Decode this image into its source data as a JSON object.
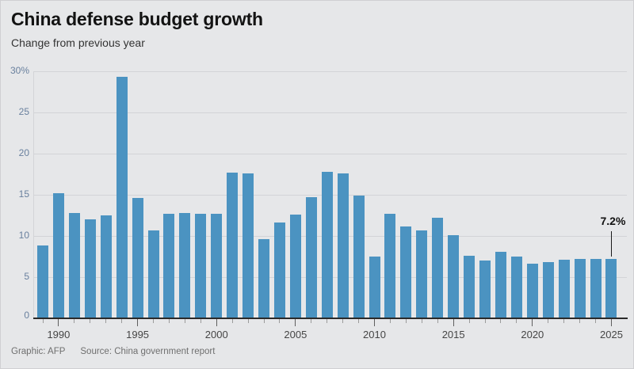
{
  "header": {
    "title": "China defense budget growth",
    "subtitle": "Change from previous year"
  },
  "footer": {
    "credit": "Graphic: AFP",
    "source": "Source: China government report"
  },
  "colors": {
    "bar": "#4b93c1",
    "background": "#e6e7e9",
    "gridline": "#d3d4d7",
    "axis": "#2a2a2a",
    "y_tick_label": "#69809e",
    "x_tick_label": "#454545",
    "annotation": "#111111"
  },
  "chart_data": {
    "type": "bar",
    "title": "China defense budget growth",
    "subtitle": "Change from previous year",
    "x": [
      1989,
      1990,
      1991,
      1992,
      1993,
      1994,
      1995,
      1996,
      1997,
      1998,
      1999,
      2000,
      2001,
      2002,
      2003,
      2004,
      2005,
      2006,
      2007,
      2008,
      2009,
      2010,
      2011,
      2012,
      2013,
      2014,
      2015,
      2016,
      2017,
      2018,
      2019,
      2020,
      2021,
      2022,
      2023,
      2024,
      2025
    ],
    "values": [
      8.8,
      15.2,
      12.8,
      12.0,
      12.5,
      29.3,
      14.6,
      10.7,
      12.7,
      12.8,
      12.7,
      12.7,
      17.7,
      17.6,
      9.6,
      11.6,
      12.6,
      14.7,
      17.8,
      17.6,
      14.9,
      7.5,
      12.7,
      11.2,
      10.7,
      12.2,
      10.1,
      7.6,
      7.0,
      8.1,
      7.5,
      6.6,
      6.8,
      7.1,
      7.2,
      7.2,
      7.2
    ],
    "unit": "%",
    "ylim": [
      0,
      30
    ],
    "yticks": [
      0,
      5,
      10,
      15,
      20,
      25,
      30
    ],
    "ytick_labels": [
      "0",
      "5",
      "10",
      "15",
      "20",
      "25",
      "30%"
    ],
    "xticks": [
      1990,
      1995,
      2000,
      2005,
      2010,
      2015,
      2020,
      2025
    ],
    "grid": true,
    "legend": null,
    "annotation": {
      "year": 2025,
      "label": "7.2%"
    }
  }
}
